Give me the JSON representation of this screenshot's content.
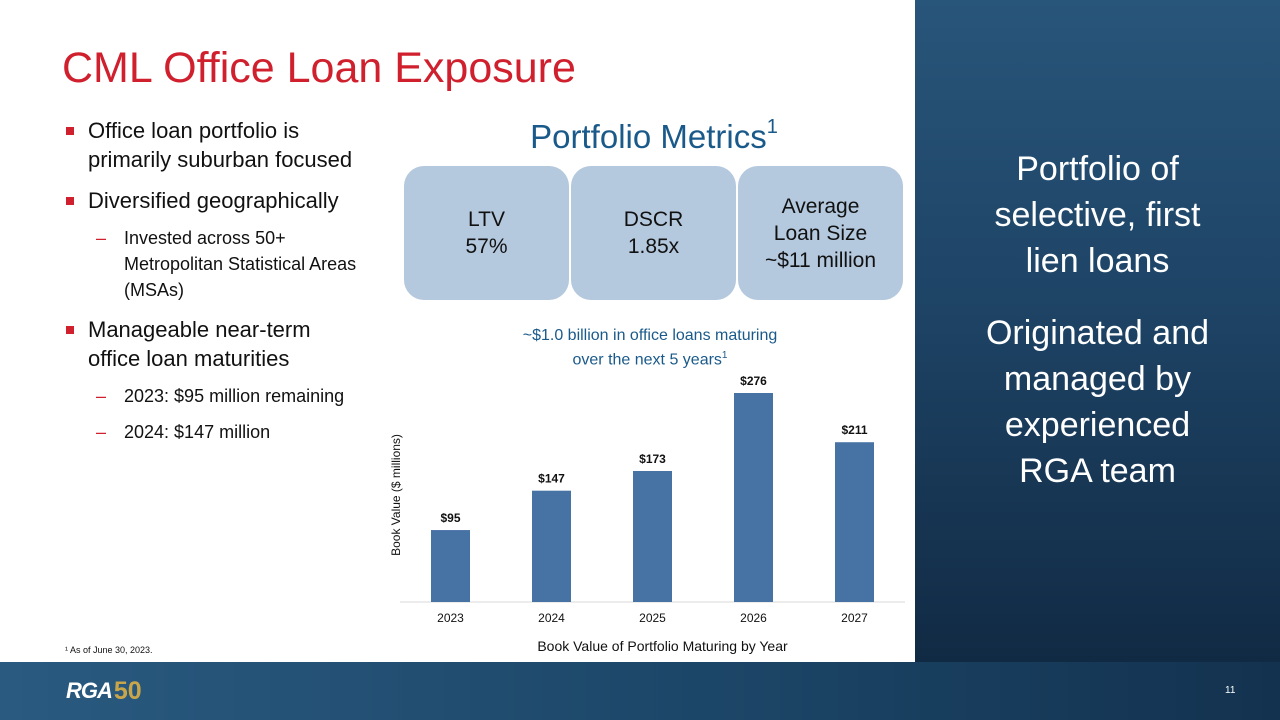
{
  "title": "CML Office Loan Exposure",
  "bullets": [
    {
      "text": "Office loan portfolio is primarily suburban focused",
      "subs": []
    },
    {
      "text": "Diversified geographically",
      "subs": [
        "Invested across 50+ Metropolitan Statistical Areas (MSAs)"
      ]
    },
    {
      "text": "Manageable near-term office loan maturities",
      "subs": [
        "2023: $95 million remaining",
        "2024: $147 million"
      ]
    }
  ],
  "footnote": "¹ As of June 30, 2023.",
  "metrics": {
    "title": "Portfolio Metrics",
    "title_sup": "1",
    "boxes": [
      {
        "lines": [
          "LTV",
          "57%"
        ]
      },
      {
        "lines": [
          "DSCR",
          "1.85x"
        ]
      },
      {
        "lines": [
          "Average",
          "Loan Size",
          "~$11 million"
        ]
      }
    ]
  },
  "chart_subtitle": {
    "line1": "~$1.0 billion in office loans maturing",
    "line2": "over the next 5 years",
    "sup": "1"
  },
  "chart_data": {
    "type": "bar",
    "categories": [
      "2023",
      "2024",
      "2025",
      "2026",
      "2027"
    ],
    "values": [
      95,
      147,
      173,
      276,
      211
    ],
    "data_labels": [
      "$95",
      "$147",
      "$173",
      "$276",
      "$211"
    ],
    "ylabel": "Book Value ($ millions)",
    "xlabel": "Book Value of Portfolio Maturing by Year",
    "ylim": [
      0,
      276
    ],
    "bar_color": "#4672a4",
    "grid": false
  },
  "side_panel": {
    "text1": [
      "Portfolio of",
      "selective, first",
      "lien loans"
    ],
    "text2": [
      "Originated and",
      "managed by",
      "experienced",
      "RGA team"
    ]
  },
  "footer": {
    "logo_text": "RGA",
    "logo_mark": "50",
    "page_number": "11"
  },
  "colors": {
    "title_red": "#d0202e",
    "accent_blue": "#1a5a8a",
    "metric_box": "#b4c8de",
    "side_panel": "#1e4466"
  }
}
